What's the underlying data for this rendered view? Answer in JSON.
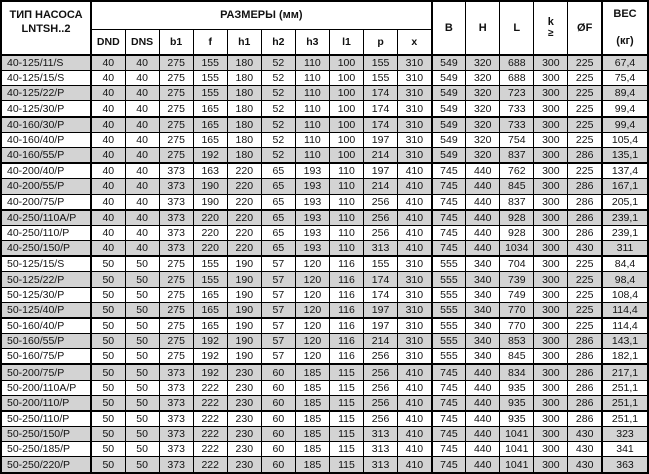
{
  "colors": {
    "background": "#ffffff",
    "shaded_row": "#d3d3d3",
    "border": "#000000",
    "text": "#111111"
  },
  "table": {
    "header": {
      "pump_type_line1": "ТИП НАСОСА",
      "pump_type_line2": "LNTSH..2",
      "dimensions_group": "РАЗМЕРЫ (мм)",
      "dim_cols": [
        "DND",
        "DNS",
        "b1",
        "f",
        "h1",
        "h2",
        "h3",
        "l1",
        "p",
        "x"
      ],
      "col_b": "B",
      "col_h": "H",
      "col_l": "L",
      "col_k_line1": "k",
      "col_k_line2": "≥",
      "col_of": "ØF",
      "weight_line1": "ВЕС",
      "weight_line2": "(кг)"
    },
    "rows": [
      {
        "type": "40-125/11/S",
        "values": [
          "40",
          "40",
          "275",
          "155",
          "180",
          "52",
          "110",
          "100",
          "155",
          "310",
          "549",
          "320",
          "688",
          "300",
          "225",
          "67,4"
        ]
      },
      {
        "type": "40-125/15/S",
        "values": [
          "40",
          "40",
          "275",
          "155",
          "180",
          "52",
          "110",
          "100",
          "155",
          "310",
          "549",
          "320",
          "688",
          "300",
          "225",
          "75,4"
        ]
      },
      {
        "type": "40-125/22/P",
        "values": [
          "40",
          "40",
          "275",
          "155",
          "180",
          "52",
          "110",
          "100",
          "174",
          "310",
          "549",
          "320",
          "723",
          "300",
          "225",
          "89,4"
        ]
      },
      {
        "type": "40-125/30/P",
        "values": [
          "40",
          "40",
          "275",
          "165",
          "180",
          "52",
          "110",
          "100",
          "174",
          "310",
          "549",
          "320",
          "733",
          "300",
          "225",
          "99,4"
        ]
      },
      {
        "type": "40-160/30/P",
        "values": [
          "40",
          "40",
          "275",
          "165",
          "180",
          "52",
          "110",
          "100",
          "174",
          "310",
          "549",
          "320",
          "733",
          "300",
          "225",
          "99,4"
        ]
      },
      {
        "type": "40-160/40/P",
        "values": [
          "40",
          "40",
          "275",
          "165",
          "180",
          "52",
          "110",
          "100",
          "197",
          "310",
          "549",
          "320",
          "754",
          "300",
          "225",
          "105,4"
        ]
      },
      {
        "type": "40-160/55/P",
        "values": [
          "40",
          "40",
          "275",
          "192",
          "180",
          "52",
          "110",
          "100",
          "214",
          "310",
          "549",
          "320",
          "837",
          "300",
          "286",
          "135,1"
        ]
      },
      {
        "type": "40-200/40/P",
        "values": [
          "40",
          "40",
          "373",
          "163",
          "220",
          "65",
          "193",
          "110",
          "197",
          "410",
          "745",
          "440",
          "762",
          "300",
          "225",
          "137,4"
        ]
      },
      {
        "type": "40-200/55/P",
        "values": [
          "40",
          "40",
          "373",
          "190",
          "220",
          "65",
          "193",
          "110",
          "214",
          "410",
          "745",
          "440",
          "845",
          "300",
          "286",
          "167,1"
        ]
      },
      {
        "type": "40-200/75/P",
        "values": [
          "40",
          "40",
          "373",
          "190",
          "220",
          "65",
          "193",
          "110",
          "256",
          "410",
          "745",
          "440",
          "837",
          "300",
          "286",
          "205,1"
        ]
      },
      {
        "type": "40-250/110A/P",
        "values": [
          "40",
          "40",
          "373",
          "220",
          "220",
          "65",
          "193",
          "110",
          "256",
          "410",
          "745",
          "440",
          "928",
          "300",
          "286",
          "239,1"
        ]
      },
      {
        "type": "40-250/110/P",
        "values": [
          "40",
          "40",
          "373",
          "220",
          "220",
          "65",
          "193",
          "110",
          "256",
          "410",
          "745",
          "440",
          "928",
          "300",
          "286",
          "239,1"
        ]
      },
      {
        "type": "40-250/150/P",
        "values": [
          "40",
          "40",
          "373",
          "220",
          "220",
          "65",
          "193",
          "110",
          "313",
          "410",
          "745",
          "440",
          "1034",
          "300",
          "430",
          "311"
        ]
      },
      {
        "type": "50-125/15/S",
        "values": [
          "50",
          "50",
          "275",
          "155",
          "190",
          "57",
          "120",
          "116",
          "155",
          "310",
          "555",
          "340",
          "704",
          "300",
          "225",
          "84,4"
        ]
      },
      {
        "type": "50-125/22/P",
        "values": [
          "50",
          "50",
          "275",
          "155",
          "190",
          "57",
          "120",
          "116",
          "174",
          "310",
          "555",
          "340",
          "739",
          "300",
          "225",
          "98,4"
        ]
      },
      {
        "type": "50-125/30/P",
        "values": [
          "50",
          "50",
          "275",
          "165",
          "190",
          "57",
          "120",
          "116",
          "174",
          "310",
          "555",
          "340",
          "749",
          "300",
          "225",
          "108,4"
        ]
      },
      {
        "type": "50-125/40/P",
        "values": [
          "50",
          "50",
          "275",
          "165",
          "190",
          "57",
          "120",
          "116",
          "197",
          "310",
          "555",
          "340",
          "770",
          "300",
          "225",
          "114,4"
        ]
      },
      {
        "type": "50-160/40/P",
        "values": [
          "50",
          "50",
          "275",
          "165",
          "190",
          "57",
          "120",
          "116",
          "197",
          "310",
          "555",
          "340",
          "770",
          "300",
          "225",
          "114,4"
        ]
      },
      {
        "type": "50-160/55/P",
        "values": [
          "50",
          "50",
          "275",
          "192",
          "190",
          "57",
          "120",
          "116",
          "214",
          "310",
          "555",
          "340",
          "853",
          "300",
          "286",
          "143,1"
        ]
      },
      {
        "type": "50-160/75/P",
        "values": [
          "50",
          "50",
          "275",
          "192",
          "190",
          "57",
          "120",
          "116",
          "256",
          "310",
          "555",
          "340",
          "845",
          "300",
          "286",
          "182,1"
        ]
      },
      {
        "type": "50-200/75/P",
        "values": [
          "50",
          "50",
          "373",
          "192",
          "230",
          "60",
          "185",
          "115",
          "256",
          "410",
          "745",
          "440",
          "834",
          "300",
          "286",
          "217,1"
        ]
      },
      {
        "type": "50-200/110A/P",
        "values": [
          "50",
          "50",
          "373",
          "222",
          "230",
          "60",
          "185",
          "115",
          "256",
          "410",
          "745",
          "440",
          "935",
          "300",
          "286",
          "251,1"
        ]
      },
      {
        "type": "50-200/110/P",
        "values": [
          "50",
          "50",
          "373",
          "222",
          "230",
          "60",
          "185",
          "115",
          "256",
          "410",
          "745",
          "440",
          "935",
          "300",
          "286",
          "251,1"
        ]
      },
      {
        "type": "50-250/110/P",
        "values": [
          "50",
          "50",
          "373",
          "222",
          "230",
          "60",
          "185",
          "115",
          "256",
          "410",
          "745",
          "440",
          "935",
          "300",
          "286",
          "251,1"
        ]
      },
      {
        "type": "50-250/150/P",
        "values": [
          "50",
          "50",
          "373",
          "222",
          "230",
          "60",
          "185",
          "115",
          "313",
          "410",
          "745",
          "440",
          "1041",
          "300",
          "430",
          "323"
        ]
      },
      {
        "type": "50-250/185/P",
        "values": [
          "50",
          "50",
          "373",
          "222",
          "230",
          "60",
          "185",
          "115",
          "313",
          "410",
          "745",
          "440",
          "1041",
          "300",
          "430",
          "341"
        ]
      },
      {
        "type": "50-250/220/P",
        "values": [
          "50",
          "50",
          "373",
          "222",
          "230",
          "60",
          "185",
          "115",
          "313",
          "410",
          "745",
          "440",
          "1041",
          "300",
          "430",
          "363"
        ]
      }
    ]
  }
}
